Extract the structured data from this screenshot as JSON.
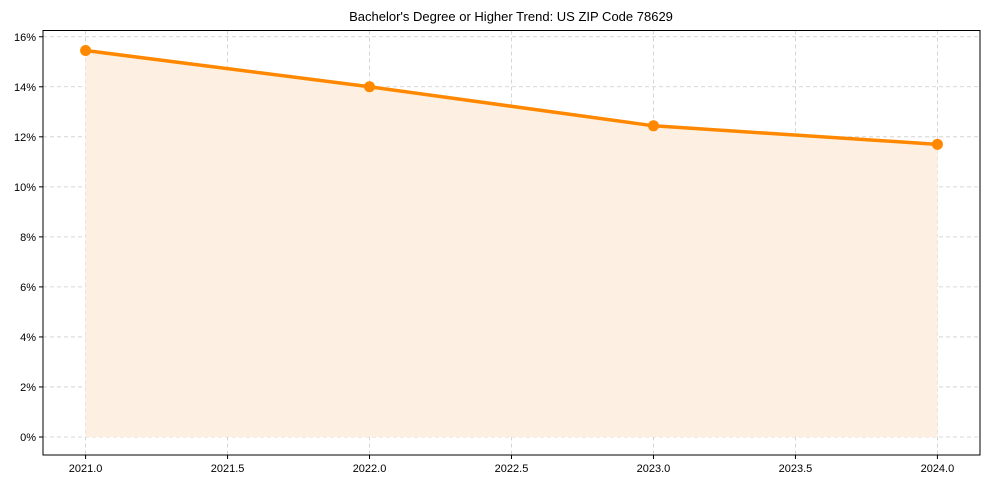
{
  "chart_data": {
    "type": "area",
    "title": "Bachelor's Degree or Higher Trend: US ZIP Code 78629",
    "xlabel": "",
    "ylabel": "",
    "x": [
      2021,
      2022,
      2023,
      2024
    ],
    "series": [
      {
        "name": "Bachelor's Degree or Higher",
        "values": [
          15.45,
          14.0,
          12.44,
          11.7
        ],
        "color": "#ff8800"
      }
    ],
    "xlim": [
      2020.85,
      2024.15
    ],
    "ylim": [
      -0.72,
      16.25
    ],
    "xticks": [
      2021.0,
      2021.5,
      2022.0,
      2022.5,
      2023.0,
      2023.5,
      2024.0
    ],
    "xtick_labels": [
      "2021.0",
      "2021.5",
      "2022.0",
      "2022.5",
      "2023.0",
      "2023.5",
      "2024.0"
    ],
    "yticks": [
      0,
      2,
      4,
      6,
      8,
      10,
      12,
      14,
      16
    ],
    "ytick_labels": [
      "0%",
      "2%",
      "4%",
      "6%",
      "8%",
      "10%",
      "12%",
      "14%",
      "16%"
    ],
    "grid": true,
    "fill_color": "#fdf0e2"
  }
}
